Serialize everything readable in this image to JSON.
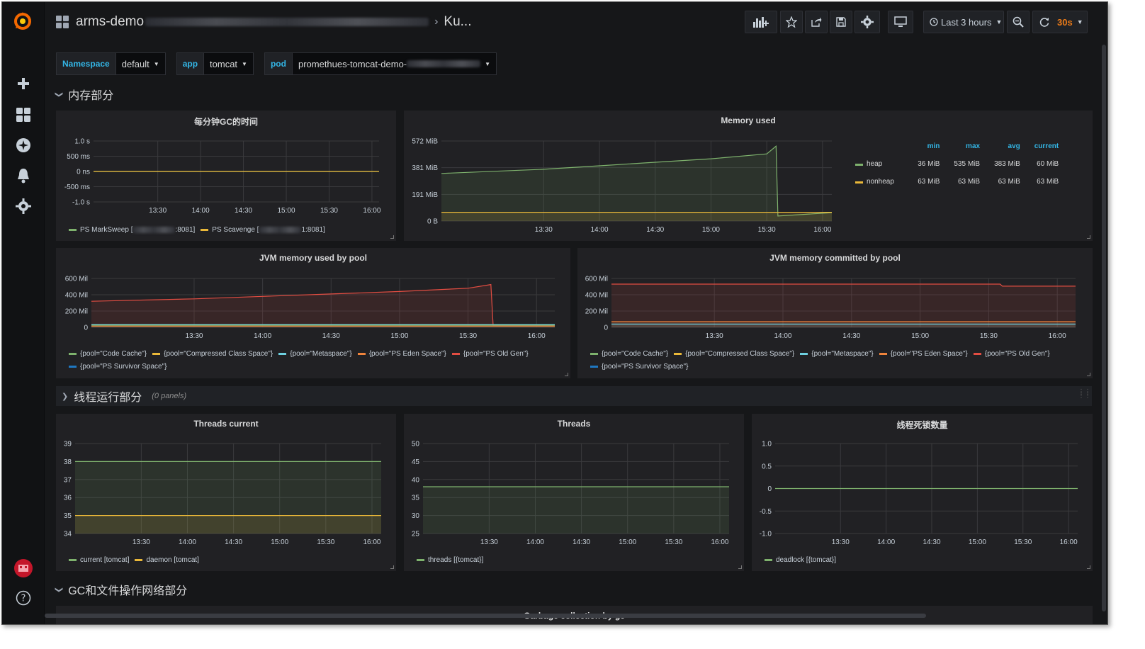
{
  "dashboard": {
    "title_prefix": "arms-demo",
    "title_suffix": "Ku..."
  },
  "toolbar": {
    "time_range": "Last 3 hours",
    "refresh": "30s"
  },
  "variables": [
    {
      "label": "Namespace",
      "value": "default"
    },
    {
      "label": "app",
      "value": "tomcat"
    },
    {
      "label": "pod",
      "value": "promethues-tomcat-demo-"
    }
  ],
  "rows": {
    "memory": "内存部分",
    "threads": "线程运行部分",
    "threads_note": "(0 panels)",
    "gc": "GC和文件操作网络部分"
  },
  "bottom_panel_title": "Garbage collection by gc",
  "legend_table_headers": [
    "min",
    "max",
    "avg",
    "current"
  ],
  "colors": {
    "green": "#7eb26d",
    "yellow": "#eab839",
    "blue": "#6ed0e0",
    "orange": "#ef843c",
    "red": "#e24d42",
    "darkblue": "#1f78c1",
    "accent": "#33b5e5",
    "refresh": "#eb7b18"
  },
  "panels": [
    {
      "id": "gc-time",
      "title": "每分钟GC的时间",
      "type": "line",
      "y_ticks": [
        "1.0 s",
        "500 ms",
        "0 ns",
        "-500 ms",
        "-1.0 s"
      ],
      "ylim": [
        -1,
        1
      ],
      "x_ticks": [
        "13:30",
        "14:00",
        "14:30",
        "15:00",
        "15:30",
        "16:00"
      ],
      "series": [
        {
          "name": "PS MarkSweep [",
          "suffix": ":8081]",
          "color": "green",
          "values": [
            0,
            0
          ],
          "fill": false
        },
        {
          "name": "PS Scavenge [",
          "suffix": "1:8081]",
          "color": "yellow",
          "values": [
            0,
            0
          ],
          "fill": false
        }
      ]
    },
    {
      "id": "memory-used",
      "title": "Memory used",
      "type": "line",
      "y_ticks": [
        "572 MiB",
        "381 MiB",
        "191 MiB",
        "0 B"
      ],
      "ylim": [
        0,
        572
      ],
      "x_ticks": [
        "13:30",
        "14:00",
        "14:30",
        "15:00",
        "15:30",
        "16:00"
      ],
      "series": [
        {
          "name": "heap",
          "color": "green",
          "min": "36 MiB",
          "max": "535 MiB",
          "avg": "383 MiB",
          "current": "60 MiB",
          "fill": true
        },
        {
          "name": "nonheap",
          "color": "yellow",
          "min": "63 MiB",
          "max": "63 MiB",
          "avg": "63 MiB",
          "current": "63 MiB",
          "fill": false
        }
      ]
    },
    {
      "id": "jvm-used",
      "title": "JVM memory used by pool",
      "type": "line",
      "y_ticks": [
        "600 Mil",
        "400 Mil",
        "200 Mil",
        "0"
      ],
      "ylim": [
        0,
        600
      ],
      "x_ticks": [
        "13:30",
        "14:00",
        "14:30",
        "15:00",
        "15:30",
        "16:00"
      ],
      "series": [
        {
          "name": "{pool=\"Code Cache\"}",
          "color": "green"
        },
        {
          "name": "{pool=\"Compressed Class Space\"}",
          "color": "yellow"
        },
        {
          "name": "{pool=\"Metaspace\"}",
          "color": "blue"
        },
        {
          "name": "{pool=\"PS Eden Space\"}",
          "color": "orange"
        },
        {
          "name": "{pool=\"PS Old Gen\"}",
          "color": "red"
        },
        {
          "name": "{pool=\"PS Survivor Space\"}",
          "color": "darkblue"
        }
      ]
    },
    {
      "id": "jvm-committed",
      "title": "JVM memory committed by pool",
      "type": "line",
      "y_ticks": [
        "600 Mil",
        "400 Mil",
        "200 Mil",
        "0"
      ],
      "ylim": [
        0,
        600
      ],
      "x_ticks": [
        "13:30",
        "14:00",
        "14:30",
        "15:00",
        "15:30",
        "16:00"
      ],
      "series": [
        {
          "name": "{pool=\"Code Cache\"}",
          "color": "green"
        },
        {
          "name": "{pool=\"Compressed Class Space\"}",
          "color": "yellow"
        },
        {
          "name": "{pool=\"Metaspace\"}",
          "color": "blue"
        },
        {
          "name": "{pool=\"PS Eden Space\"}",
          "color": "orange"
        },
        {
          "name": "{pool=\"PS Old Gen\"}",
          "color": "red"
        },
        {
          "name": "{pool=\"PS Survivor Space\"}",
          "color": "darkblue"
        }
      ]
    },
    {
      "id": "threads-current",
      "title": "Threads current",
      "type": "line",
      "y_ticks": [
        "39",
        "38",
        "37",
        "36",
        "35",
        "34"
      ],
      "ylim": [
        34,
        39
      ],
      "x_ticks": [
        "13:30",
        "14:00",
        "14:30",
        "15:00",
        "15:30",
        "16:00"
      ],
      "series": [
        {
          "name": "current [tomcat]",
          "color": "green",
          "value": 38
        },
        {
          "name": "daemon [tomcat]",
          "color": "yellow",
          "value": 35
        }
      ]
    },
    {
      "id": "threads",
      "title": "Threads",
      "type": "line",
      "y_ticks": [
        "50",
        "45",
        "40",
        "35",
        "30",
        "25"
      ],
      "ylim": [
        25,
        50
      ],
      "x_ticks": [
        "13:30",
        "14:00",
        "14:30",
        "15:00",
        "15:30",
        "16:00"
      ],
      "series": [
        {
          "name": "threads [{tomcat}]",
          "color": "green",
          "value": 38
        }
      ]
    },
    {
      "id": "deadlock",
      "title": "线程死锁数量",
      "type": "line",
      "y_ticks": [
        "1.0",
        "0.5",
        "0",
        "-0.5",
        "-1.0"
      ],
      "ylim": [
        -1,
        1
      ],
      "x_ticks": [
        "13:30",
        "14:00",
        "14:30",
        "15:00",
        "15:30",
        "16:00"
      ],
      "series": [
        {
          "name": "deadlock [{tomcat}]",
          "color": "green",
          "value": 0
        }
      ]
    }
  ],
  "chart_data": [
    {
      "type": "line",
      "title": "每分钟GC的时间",
      "x": [
        "13:30",
        "14:00",
        "14:30",
        "15:00",
        "15:30",
        "16:00"
      ],
      "ylim": [
        -1,
        1
      ],
      "series": [
        {
          "name": "PS MarkSweep",
          "values": [
            0,
            0,
            0,
            0,
            0,
            0
          ]
        },
        {
          "name": "PS Scavenge",
          "values": [
            0,
            0,
            0,
            0,
            0,
            0
          ]
        }
      ]
    },
    {
      "type": "area",
      "title": "Memory used",
      "x": [
        "13:00",
        "13:30",
        "14:00",
        "14:30",
        "15:00",
        "15:30",
        "15:35",
        "15:36",
        "16:00"
      ],
      "ylim": [
        0,
        572
      ],
      "series": [
        {
          "name": "heap",
          "values": [
            340,
            370,
            395,
            420,
            445,
            480,
            535,
            36,
            60
          ]
        },
        {
          "name": "nonheap",
          "values": [
            63,
            63,
            63,
            63,
            63,
            63,
            63,
            63,
            63
          ]
        }
      ]
    },
    {
      "type": "area",
      "title": "JVM memory used by pool",
      "x": [
        "13:00",
        "13:30",
        "14:00",
        "14:30",
        "15:00",
        "15:30",
        "15:40",
        "15:41",
        "16:00"
      ],
      "ylim": [
        0,
        600
      ],
      "series": [
        {
          "name": "{pool=\"PS Old Gen\"}",
          "values": [
            320,
            350,
            380,
            410,
            440,
            480,
            525,
            20,
            20
          ]
        },
        {
          "name": "{pool=\"Metaspace\"}",
          "values": [
            35,
            35,
            35,
            35,
            35,
            35,
            35,
            35,
            35
          ]
        },
        {
          "name": "{pool=\"Code Cache\"}",
          "values": [
            25,
            25,
            25,
            25,
            25,
            25,
            25,
            25,
            25
          ]
        },
        {
          "name": "{pool=\"PS Eden Space\"}",
          "values": [
            15,
            15,
            15,
            15,
            15,
            15,
            15,
            15,
            15
          ]
        }
      ]
    },
    {
      "type": "area",
      "title": "JVM memory committed by pool",
      "x": [
        "13:00",
        "15:35",
        "15:36",
        "16:00"
      ],
      "ylim": [
        0,
        600
      ],
      "series": [
        {
          "name": "{pool=\"PS Old Gen\"}",
          "values": [
            530,
            530,
            505,
            505
          ]
        },
        {
          "name": "{pool=\"PS Eden Space\"}",
          "values": [
            70,
            70,
            70,
            70
          ]
        },
        {
          "name": "{pool=\"Metaspace\"}",
          "values": [
            40,
            40,
            40,
            40
          ]
        }
      ]
    },
    {
      "type": "line",
      "title": "Threads current",
      "x": [
        "13:30",
        "16:00"
      ],
      "ylim": [
        34,
        39
      ],
      "series": [
        {
          "name": "current [tomcat]",
          "values": [
            38,
            38
          ]
        },
        {
          "name": "daemon [tomcat]",
          "values": [
            35,
            35
          ]
        }
      ]
    },
    {
      "type": "line",
      "title": "Threads",
      "x": [
        "13:30",
        "16:00"
      ],
      "ylim": [
        25,
        50
      ],
      "series": [
        {
          "name": "threads [{tomcat}]",
          "values": [
            38,
            38
          ]
        }
      ]
    },
    {
      "type": "line",
      "title": "线程死锁数量",
      "x": [
        "13:30",
        "16:00"
      ],
      "ylim": [
        -1,
        1
      ],
      "series": [
        {
          "name": "deadlock [{tomcat}]",
          "values": [
            0,
            0
          ]
        }
      ]
    }
  ]
}
